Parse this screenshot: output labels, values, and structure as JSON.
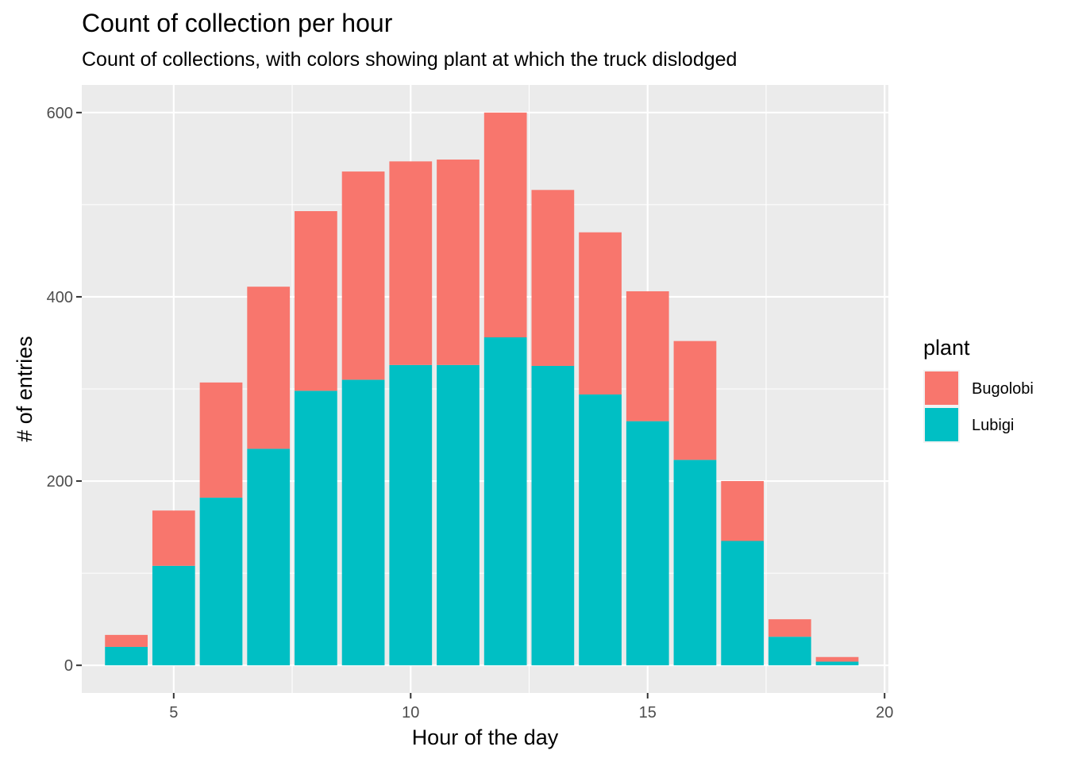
{
  "chart_data": {
    "type": "bar",
    "stacked": true,
    "title": "Count of collection per hour",
    "subtitle": "Count of collections, with colors showing plant at which the truck dislodged",
    "xlabel": "Hour of the day",
    "ylabel": "# of entries",
    "x": [
      4,
      5,
      6,
      7,
      8,
      9,
      10,
      11,
      12,
      13,
      14,
      15,
      16,
      17,
      18,
      19
    ],
    "series": [
      {
        "name": "Lubigi",
        "color": "#00BFC4",
        "values": [
          20,
          108,
          182,
          235,
          298,
          310,
          326,
          326,
          356,
          325,
          294,
          265,
          223,
          135,
          31,
          4
        ]
      },
      {
        "name": "Bugolobi",
        "color": "#F8766D",
        "values": [
          13,
          60,
          125,
          176,
          195,
          226,
          221,
          223,
          244,
          191,
          176,
          141,
          129,
          65,
          19,
          5
        ]
      }
    ],
    "xlim": [
      3.06,
      20.08
    ],
    "ylim": [
      -30,
      630
    ],
    "xticks": [
      5,
      10,
      15,
      20
    ],
    "yticks": [
      0,
      200,
      400,
      600
    ],
    "grid": true,
    "legend": {
      "title": "plant",
      "position": "right",
      "entries": [
        "Bugolobi",
        "Lubigi"
      ]
    },
    "panel_color": "#EBEBEB"
  }
}
